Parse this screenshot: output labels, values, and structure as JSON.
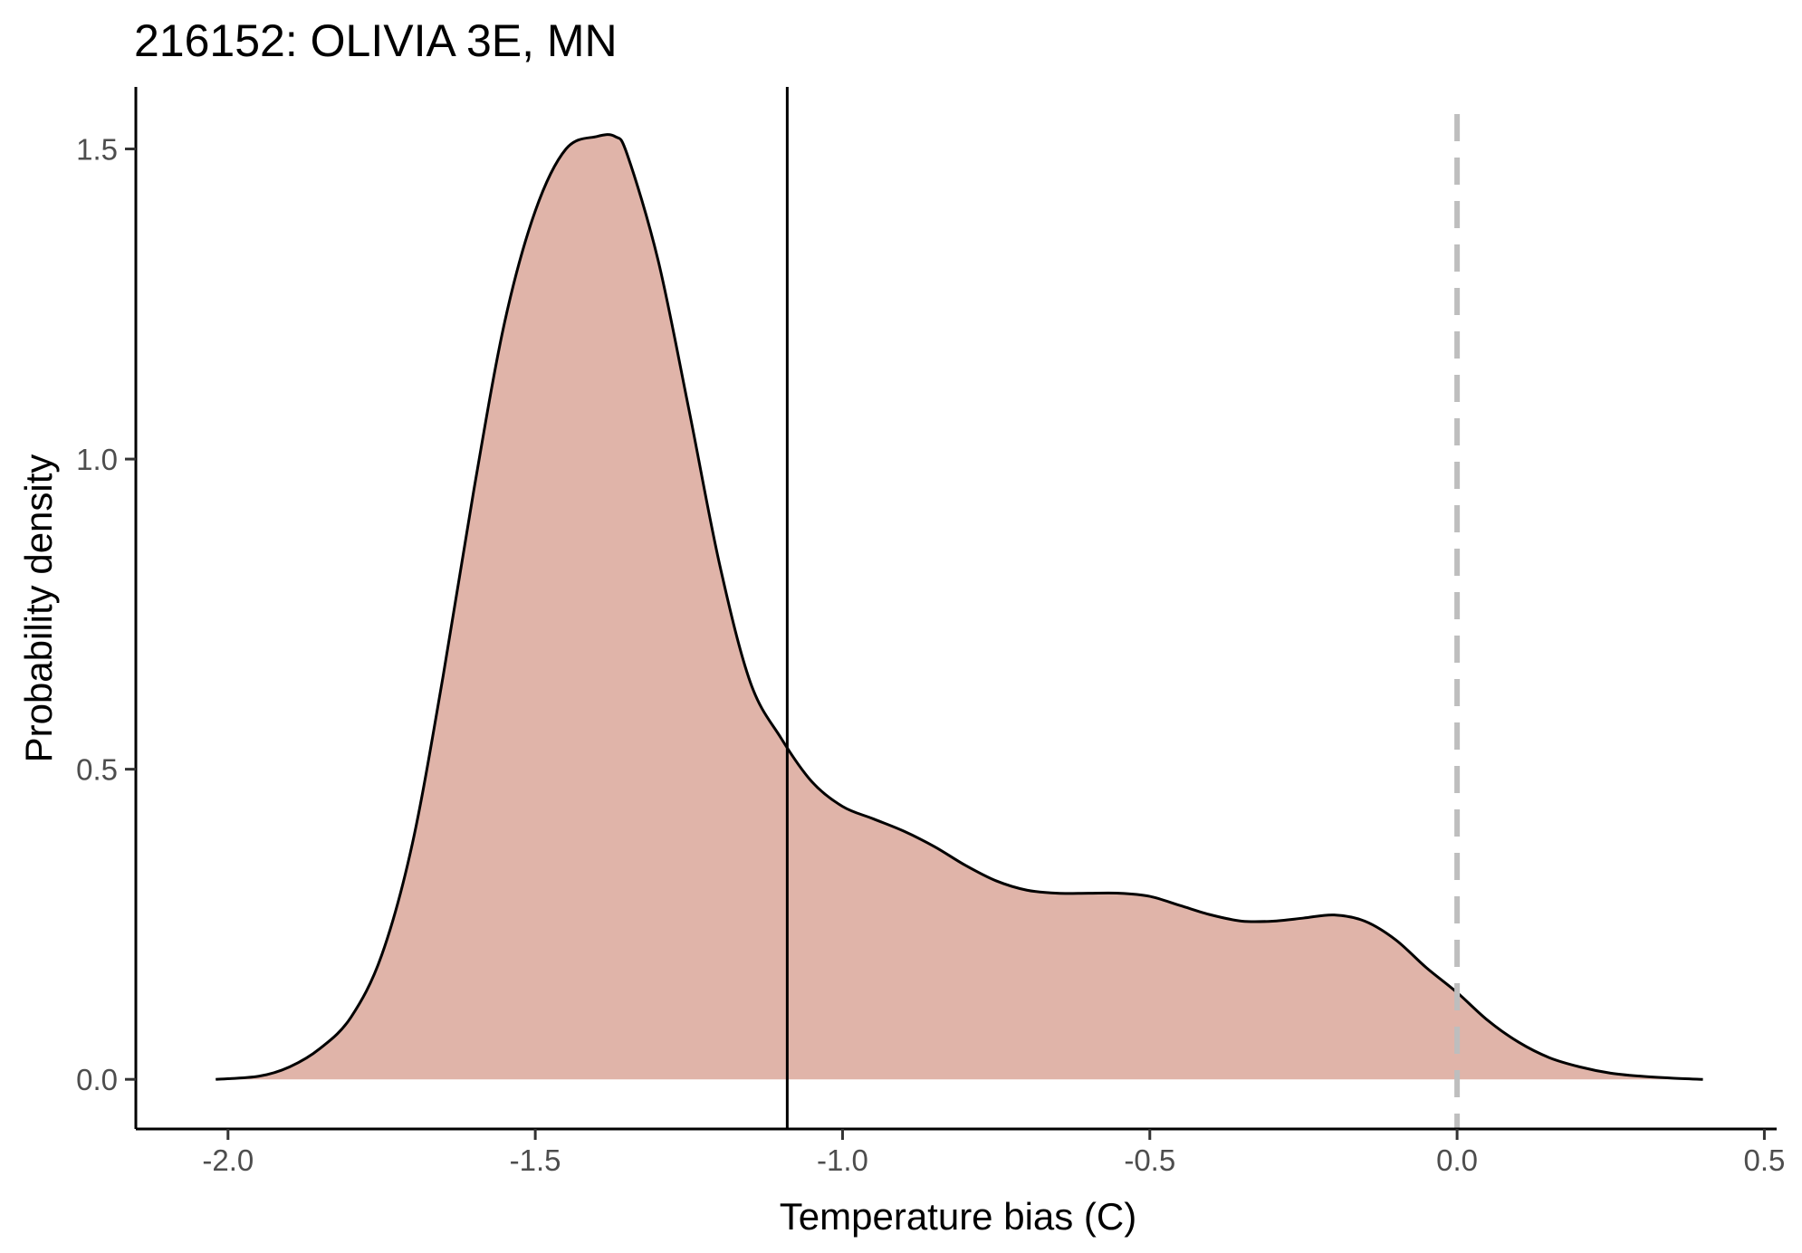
{
  "chart_data": {
    "type": "area",
    "title": "216152: OLIVIA 3E, MN",
    "xlabel": "Temperature bias (C)",
    "ylabel": "Probability density",
    "xlim": [
      -2.15,
      0.52
    ],
    "ylim": [
      -0.08,
      1.6
    ],
    "x_ticks": [
      -2.0,
      -1.5,
      -1.0,
      -0.5,
      0.0,
      0.5
    ],
    "x_tick_labels": [
      "-2.0",
      "-1.5",
      "-1.0",
      "-0.5",
      "0.0",
      "0.5"
    ],
    "y_ticks": [
      0.0,
      0.5,
      1.0,
      1.5
    ],
    "y_tick_labels": [
      "0.0",
      "0.5",
      "1.0",
      "1.5"
    ],
    "grid": false,
    "legend": "none",
    "fill_color": "#e0b4a9",
    "line_color": "#000000",
    "series": [
      {
        "x": [
          -2.02,
          -1.95,
          -1.9,
          -1.85,
          -1.8,
          -1.75,
          -1.7,
          -1.65,
          -1.6,
          -1.55,
          -1.5,
          -1.45,
          -1.4,
          -1.37,
          -1.35,
          -1.3,
          -1.25,
          -1.2,
          -1.15,
          -1.1,
          -1.05,
          -1.0,
          -0.95,
          -0.9,
          -0.85,
          -0.8,
          -0.75,
          -0.7,
          -0.65,
          -0.6,
          -0.55,
          -0.5,
          -0.45,
          -0.4,
          -0.35,
          -0.3,
          -0.25,
          -0.2,
          -0.15,
          -0.1,
          -0.05,
          0.0,
          0.05,
          0.1,
          0.15,
          0.2,
          0.25,
          0.3,
          0.35,
          0.4
        ],
        "y": [
          0.0,
          0.005,
          0.02,
          0.05,
          0.1,
          0.2,
          0.38,
          0.65,
          0.95,
          1.22,
          1.4,
          1.5,
          1.52,
          1.52,
          1.49,
          1.32,
          1.08,
          0.83,
          0.64,
          0.55,
          0.48,
          0.44,
          0.42,
          0.4,
          0.375,
          0.345,
          0.32,
          0.305,
          0.3,
          0.3,
          0.3,
          0.295,
          0.28,
          0.265,
          0.255,
          0.255,
          0.26,
          0.265,
          0.255,
          0.225,
          0.18,
          0.14,
          0.095,
          0.06,
          0.035,
          0.02,
          0.01,
          0.005,
          0.002,
          0.0
        ]
      }
    ],
    "vlines": [
      {
        "x": -1.09,
        "style": "solid",
        "color": "#000000"
      },
      {
        "x": 0.0,
        "style": "dashed",
        "color": "#bebebe"
      }
    ]
  }
}
